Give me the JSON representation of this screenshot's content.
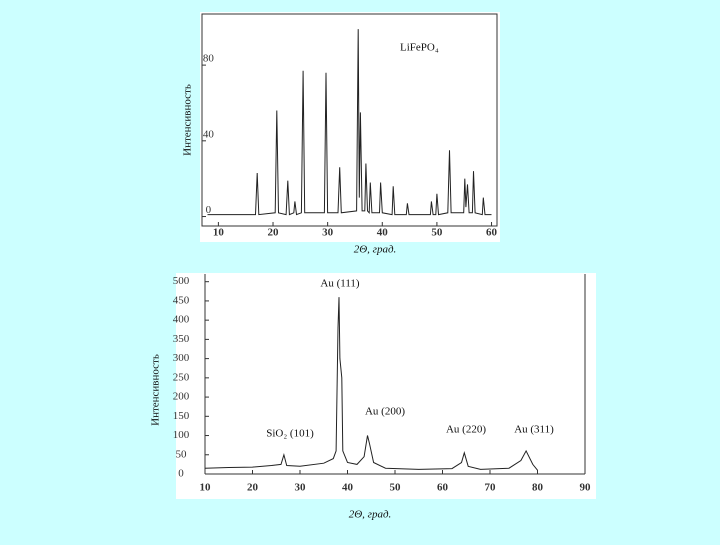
{
  "chart_data": [
    {
      "type": "line",
      "annotations": [
        "LiFePO₄"
      ],
      "ylabel": "Интенсивность",
      "xlabel": "2Θ, град.",
      "xlim": [
        7,
        61
      ],
      "xticks": [
        10,
        20,
        30,
        40,
        50,
        60
      ],
      "ylim": [
        -5,
        107
      ],
      "yticks": [
        0,
        40,
        80
      ],
      "color": "#222222",
      "x": [
        8,
        16.8,
        17.1,
        17.4,
        20.4,
        20.7,
        21.0,
        22.4,
        22.7,
        23.0,
        23.8,
        24.0,
        24.3,
        25.2,
        25.5,
        25.8,
        29.4,
        29.7,
        30.0,
        31.9,
        32.2,
        32.5,
        35.3,
        35.6,
        35.8,
        36.0,
        36.3,
        36.8,
        37.0,
        37.3,
        37.6,
        37.8,
        38.1,
        39.5,
        39.7,
        40.0,
        41.8,
        42.0,
        42.3,
        44.4,
        44.6,
        44.9,
        48.8,
        49.0,
        49.3,
        49.8,
        50.0,
        50.3,
        52.0,
        52.3,
        52.6,
        54.9,
        55.1,
        55.3,
        55.6,
        55.9,
        56.5,
        56.7,
        57.0,
        58.3,
        58.5,
        58.8,
        60
      ],
      "values": [
        1,
        1,
        23,
        1,
        2,
        56,
        2,
        1,
        19,
        1,
        2,
        8,
        1,
        2,
        77,
        2,
        2,
        76,
        2,
        2,
        26,
        2,
        3,
        99,
        10,
        55,
        3,
        3,
        28,
        3,
        2,
        18,
        2,
        2,
        18,
        2,
        1,
        16,
        1,
        1,
        7,
        1,
        1,
        8,
        1,
        1,
        12,
        1,
        2,
        35,
        2,
        2,
        20,
        5,
        17,
        2,
        2,
        24,
        2,
        1,
        10,
        1,
        1
      ]
    },
    {
      "type": "line",
      "annotations": [
        "Au (111)",
        "Au (200)",
        "Au (220)",
        "Au (311)",
        "SiO₂ (101)"
      ],
      "ylabel": "Интенсивность",
      "xlabel": "2Θ, град.",
      "xlim": [
        10,
        90
      ],
      "xticks": [
        10,
        20,
        30,
        40,
        50,
        60,
        70,
        80,
        90
      ],
      "ylim": [
        0,
        520
      ],
      "yticks": [
        0,
        50,
        100,
        150,
        200,
        250,
        300,
        350,
        400,
        450,
        500
      ],
      "color": "#222222",
      "x": [
        10,
        15,
        20,
        24,
        26,
        26.6,
        27.2,
        30,
        35,
        37,
        37.6,
        38.0,
        38.2,
        38.4,
        38.8,
        39.0,
        40,
        42,
        43.5,
        44.2,
        44.6,
        45.5,
        48,
        55,
        62,
        64,
        64.6,
        65.4,
        68,
        74,
        76.5,
        77.6,
        79,
        80
      ],
      "values": [
        15,
        17,
        18,
        22,
        25,
        50,
        22,
        20,
        28,
        40,
        60,
        380,
        460,
        300,
        250,
        60,
        30,
        25,
        45,
        100,
        80,
        30,
        15,
        12,
        14,
        30,
        55,
        20,
        12,
        15,
        35,
        60,
        25,
        10
      ]
    }
  ]
}
